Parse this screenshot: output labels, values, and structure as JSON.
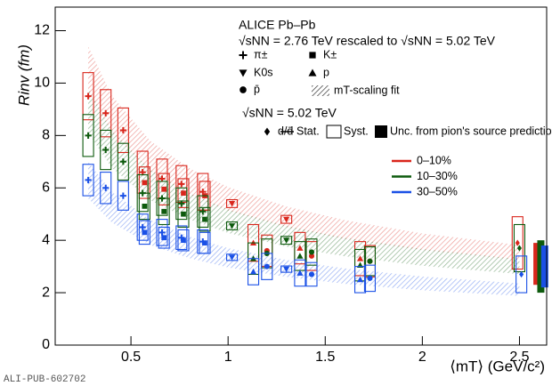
{
  "chart_data": {
    "type": "scatter",
    "title": "ALICE Pb–Pb",
    "subtitle": "√sNN = 2.76 TeV rescaled to √sNN = 5.02 TeV",
    "subtitle2": "√sNN = 5.02 TeV",
    "x_label": "⟨mT⟩ (GeV/c²)",
    "y_label": "Rinv (fm)",
    "watermark": "ALI-PUB-602702",
    "xlim": [
      0.11,
      2.64
    ],
    "ylim": [
      0,
      12.9
    ],
    "xticks": [
      0.5,
      1,
      1.5,
      2,
      2.5
    ],
    "yticks": [
      0,
      2,
      4,
      6,
      8,
      10,
      12
    ],
    "species": [
      {
        "label": "π±",
        "marker": "cross"
      },
      {
        "label": "K±",
        "marker": "square"
      },
      {
        "label": "K0s",
        "marker": "tri-down"
      },
      {
        "label": "p",
        "marker": "tri-up"
      },
      {
        "label": "p̄",
        "marker": "circle"
      },
      {
        "label": "d/d̄",
        "marker": "diamond"
      }
    ],
    "legend_labels": {
      "fit": "mT-scaling fit",
      "stat": "Stat.",
      "syst": "Syst.",
      "pred": "Unc. from pion's source prediction"
    },
    "series": [
      {
        "name": "0–10%",
        "color": "#d9261c",
        "groups": [
          {
            "species": 0,
            "x": [
              0.28,
              0.37,
              0.46,
              0.56,
              0.66,
              0.76,
              0.87
            ],
            "values": [
              9.5,
              8.85,
              8.2,
              6.6,
              6.35,
              6.15,
              5.85
            ],
            "syst": [
              0.9,
              0.9,
              0.85,
              0.8,
              0.75,
              0.7,
              0.7
            ]
          },
          {
            "species": 1,
            "x": [
              0.57,
              0.67,
              0.77,
              0.88
            ],
            "values": [
              6.2,
              5.95,
              5.8,
              5.7
            ],
            "syst": [
              0.6,
              0.6,
              0.55,
              0.55
            ]
          },
          {
            "species": 2,
            "x": [
              1.02,
              1.3
            ],
            "values": [
              5.4,
              4.8
            ],
            "syst": [
              0.15,
              0.15
            ]
          },
          {
            "species": 3,
            "x": [
              1.13,
              1.37,
              1.68
            ],
            "values": [
              3.9,
              3.7,
              3.3
            ],
            "syst": [
              0.7,
              0.6,
              0.65
            ]
          },
          {
            "species": 4,
            "x": [
              1.2,
              1.43,
              1.73
            ],
            "values": [
              3.6,
              3.4,
              3.2
            ],
            "syst": [
              0.6,
              0.55,
              0.6
            ]
          },
          {
            "species": 5,
            "x": [
              2.49
            ],
            "values": [
              3.9
            ],
            "syst": [
              1.0
            ]
          }
        ],
        "band": {
          "x": [
            0.28,
            0.4,
            0.6,
            0.8,
            1.0,
            1.3,
            1.6,
            2.0,
            2.5
          ],
          "high": [
            11.4,
            9.54,
            7.79,
            6.75,
            6.03,
            5.29,
            4.77,
            4.26,
            3.82
          ],
          "low": [
            9.7,
            8.12,
            6.63,
            5.74,
            5.13,
            4.5,
            4.05,
            3.63,
            3.25
          ]
        },
        "prediction": {
          "x": 2.59,
          "low": 2.3,
          "high": 3.9
        }
      },
      {
        "name": "10–30%",
        "color": "#0d5a0d",
        "groups": [
          {
            "species": 0,
            "x": [
              0.28,
              0.37,
              0.46,
              0.56,
              0.66,
              0.76,
              0.87
            ],
            "values": [
              8.0,
              7.45,
              7.0,
              5.8,
              5.6,
              5.4,
              5.1
            ],
            "syst": [
              0.8,
              0.75,
              0.7,
              0.7,
              0.65,
              0.6,
              0.6
            ]
          },
          {
            "species": 1,
            "x": [
              0.57,
              0.67,
              0.77,
              0.88
            ],
            "values": [
              5.3,
              5.1,
              5.0,
              4.8
            ],
            "syst": [
              0.5,
              0.5,
              0.5,
              0.45
            ]
          },
          {
            "species": 2,
            "x": [
              1.02,
              1.3
            ],
            "values": [
              4.55,
              4.0
            ],
            "syst": [
              0.15,
              0.15
            ]
          },
          {
            "species": 3,
            "x": [
              1.13,
              1.37,
              1.68
            ],
            "values": [
              3.3,
              3.4,
              3.05
            ],
            "syst": [
              0.6,
              0.55,
              0.6
            ]
          },
          {
            "species": 4,
            "x": [
              1.2,
              1.43,
              1.73
            ],
            "values": [
              3.5,
              3.55,
              3.2
            ],
            "syst": [
              0.55,
              0.5,
              0.55
            ]
          },
          {
            "species": 5,
            "x": [
              2.5
            ],
            "values": [
              3.7
            ],
            "syst": [
              0.9
            ]
          }
        ],
        "band": {
          "x": [
            0.28,
            0.4,
            0.6,
            0.8,
            1.0,
            1.3,
            1.6,
            2.0,
            2.5
          ],
          "high": [
            9.8,
            8.2,
            6.69,
            5.8,
            5.18,
            4.55,
            4.1,
            3.67,
            3.28
          ],
          "low": [
            8.1,
            6.78,
            5.53,
            4.8,
            4.28,
            3.76,
            3.39,
            3.03,
            2.71
          ]
        },
        "prediction": {
          "x": 2.61,
          "low": 2.0,
          "high": 4.0
        }
      },
      {
        "name": "30–50%",
        "color": "#1a50e6",
        "groups": [
          {
            "species": 0,
            "x": [
              0.28,
              0.37,
              0.46,
              0.56,
              0.66,
              0.76,
              0.87
            ],
            "values": [
              6.3,
              6.0,
              5.7,
              4.5,
              4.3,
              4.1,
              3.95
            ],
            "syst": [
              0.6,
              0.6,
              0.55,
              0.5,
              0.5,
              0.45,
              0.45
            ]
          },
          {
            "species": 1,
            "x": [
              0.57,
              0.67,
              0.77,
              0.88
            ],
            "values": [
              4.3,
              4.1,
              4.0,
              3.9
            ],
            "syst": [
              0.45,
              0.4,
              0.4,
              0.4
            ]
          },
          {
            "species": 2,
            "x": [
              1.02,
              1.3
            ],
            "values": [
              3.35,
              2.9
            ],
            "syst": [
              0.12,
              0.12
            ]
          },
          {
            "species": 3,
            "x": [
              1.13,
              1.37,
              1.68
            ],
            "values": [
              2.8,
              2.75,
              2.5
            ],
            "syst": [
              0.5,
              0.5,
              0.5
            ]
          },
          {
            "species": 4,
            "x": [
              1.2,
              1.43,
              1.73
            ],
            "values": [
              3.0,
              2.7,
              2.55
            ],
            "syst": [
              0.5,
              0.45,
              0.5
            ]
          },
          {
            "species": 5,
            "x": [
              2.51
            ],
            "values": [
              2.7
            ],
            "syst": [
              0.7
            ]
          }
        ],
        "band": {
          "x": [
            0.28,
            0.4,
            0.6,
            0.8,
            1.0,
            1.3,
            1.6,
            2.0,
            2.5
          ],
          "high": [
            7.0,
            5.86,
            4.78,
            4.14,
            3.7,
            3.25,
            2.93,
            2.62,
            2.35
          ],
          "low": [
            5.6,
            4.69,
            3.82,
            3.32,
            2.96,
            2.6,
            2.34,
            2.09,
            1.88
          ]
        },
        "prediction": {
          "x": 2.63,
          "low": 2.2,
          "high": 3.8
        }
      }
    ]
  }
}
